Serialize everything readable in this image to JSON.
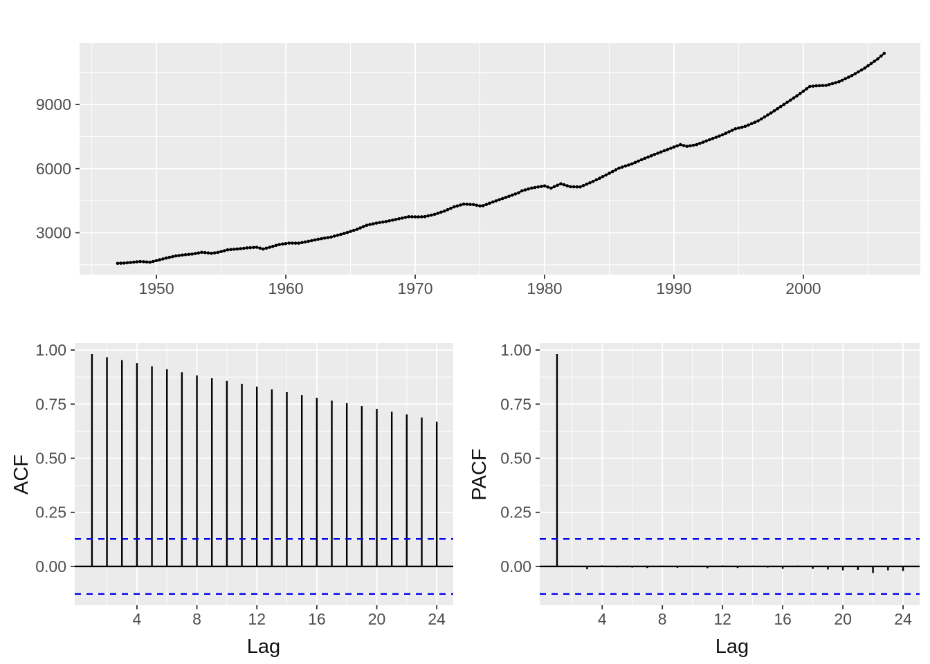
{
  "figure": {
    "background": "#FFFFFF",
    "panel_background": "#EBEBEB",
    "grid_color": "#FFFFFF",
    "tick_label_color": "#4D4D4D",
    "axis_title_color": "#111111",
    "series_color": "#000000",
    "conf_line_color": "#0000EE"
  },
  "chart_data": [
    {
      "id": "timeseries",
      "type": "line",
      "title": "",
      "xlabel": "",
      "ylabel": "",
      "x_tick_labels": [
        "1950",
        "1960",
        "1970",
        "1980",
        "1990",
        "2000"
      ],
      "x_ticks": [
        1950,
        1960,
        1970,
        1980,
        1990,
        2000
      ],
      "x_minor": [
        1945,
        1955,
        1965,
        1975,
        1985,
        1995,
        2005
      ],
      "y_tick_labels": [
        "3000",
        "6000",
        "9000"
      ],
      "y_ticks": [
        3000,
        6000,
        9000
      ],
      "y_minor": [
        1500,
        4500,
        7500,
        10500
      ],
      "xlim": [
        1944.06,
        2009.04
      ],
      "ylim": [
        1043,
        11879
      ],
      "frequency": "quarterly",
      "start": 1947.0,
      "end": 2006.25,
      "marker": "point-on-line",
      "anchors": [
        [
          1947.0,
          1570
        ],
        [
          1947.5,
          1580
        ],
        [
          1948.0,
          1610
        ],
        [
          1948.75,
          1655
        ],
        [
          1949.5,
          1622
        ],
        [
          1950.0,
          1695
        ],
        [
          1950.75,
          1815
        ],
        [
          1951.5,
          1915
        ],
        [
          1952.0,
          1958
        ],
        [
          1952.75,
          2000
        ],
        [
          1953.5,
          2085
        ],
        [
          1954.25,
          2040
        ],
        [
          1954.75,
          2080
        ],
        [
          1955.5,
          2200
        ],
        [
          1956.25,
          2240
        ],
        [
          1957.0,
          2290
        ],
        [
          1957.75,
          2320
        ],
        [
          1958.25,
          2240
        ],
        [
          1958.75,
          2320
        ],
        [
          1959.5,
          2450
        ],
        [
          1960.25,
          2515
        ],
        [
          1961.0,
          2510
        ],
        [
          1961.75,
          2600
        ],
        [
          1962.5,
          2695
        ],
        [
          1963.5,
          2800
        ],
        [
          1964.5,
          2965
        ],
        [
          1965.5,
          3160
        ],
        [
          1966.25,
          3350
        ],
        [
          1967.0,
          3450
        ],
        [
          1967.75,
          3525
        ],
        [
          1968.5,
          3620
        ],
        [
          1969.5,
          3750
        ],
        [
          1970.25,
          3740
        ],
        [
          1970.75,
          3755
        ],
        [
          1971.5,
          3860
        ],
        [
          1972.25,
          4010
        ],
        [
          1973.0,
          4210
        ],
        [
          1973.75,
          4340
        ],
        [
          1974.5,
          4315
        ],
        [
          1975.0,
          4255
        ],
        [
          1975.25,
          4265
        ],
        [
          1976.0,
          4440
        ],
        [
          1977.0,
          4650
        ],
        [
          1978.0,
          4870
        ],
        [
          1978.25,
          4960
        ],
        [
          1979.0,
          5090
        ],
        [
          1980.0,
          5190
        ],
        [
          1980.5,
          5085
        ],
        [
          1981.25,
          5290
        ],
        [
          1982.0,
          5150
        ],
        [
          1982.75,
          5140
        ],
        [
          1983.75,
          5400
        ],
        [
          1984.75,
          5700
        ],
        [
          1985.75,
          6020
        ],
        [
          1986.75,
          6220
        ],
        [
          1987.75,
          6480
        ],
        [
          1988.75,
          6720
        ],
        [
          1989.75,
          6950
        ],
        [
          1990.5,
          7120
        ],
        [
          1991.0,
          7040
        ],
        [
          1991.75,
          7120
        ],
        [
          1992.75,
          7350
        ],
        [
          1993.75,
          7580
        ],
        [
          1994.75,
          7860
        ],
        [
          1995.5,
          7970
        ],
        [
          1996.5,
          8230
        ],
        [
          1997.5,
          8600
        ],
        [
          1998.5,
          9000
        ],
        [
          1999.5,
          9400
        ],
        [
          2000.5,
          9840
        ],
        [
          2001.0,
          9870
        ],
        [
          2001.75,
          9890
        ],
        [
          2002.75,
          10060
        ],
        [
          2003.75,
          10350
        ],
        [
          2004.75,
          10700
        ],
        [
          2005.75,
          11130
        ],
        [
          2006.25,
          11390
        ]
      ]
    },
    {
      "id": "acf",
      "type": "bar",
      "title": "",
      "xlabel": "Lag",
      "ylabel": "ACF",
      "x_tick_labels": [
        "4",
        "8",
        "12",
        "16",
        "20",
        "24"
      ],
      "x_ticks": [
        4,
        8,
        12,
        16,
        20,
        24
      ],
      "x_minor": [
        2,
        6,
        10,
        14,
        18,
        22
      ],
      "y_tick_labels": [
        "0.00",
        "0.25",
        "0.50",
        "0.75",
        "1.00"
      ],
      "y_ticks": [
        0,
        0.25,
        0.5,
        0.75,
        1.0
      ],
      "y_minor": [
        -0.125,
        0.125,
        0.375,
        0.625,
        0.875
      ],
      "xlim": [
        -0.15,
        25.1
      ],
      "ylim": [
        -0.179,
        1.032
      ],
      "zero_line": 0,
      "conf_bounds": [
        0.127,
        -0.127
      ],
      "lags": [
        1,
        2,
        3,
        4,
        5,
        6,
        7,
        8,
        9,
        10,
        11,
        12,
        13,
        14,
        15,
        16,
        17,
        18,
        19,
        20,
        21,
        22,
        23,
        24
      ],
      "values": [
        0.981,
        0.967,
        0.953,
        0.939,
        0.925,
        0.911,
        0.897,
        0.883,
        0.87,
        0.857,
        0.844,
        0.831,
        0.818,
        0.805,
        0.792,
        0.779,
        0.766,
        0.754,
        0.741,
        0.728,
        0.715,
        0.702,
        0.688,
        0.669
      ]
    },
    {
      "id": "pacf",
      "type": "bar",
      "title": "",
      "xlabel": "Lag",
      "ylabel": "PACF",
      "x_tick_labels": [
        "4",
        "8",
        "12",
        "16",
        "20",
        "24"
      ],
      "x_ticks": [
        4,
        8,
        12,
        16,
        20,
        24
      ],
      "x_minor": [
        2,
        6,
        10,
        14,
        18,
        22
      ],
      "y_tick_labels": [
        "0.00",
        "0.25",
        "0.50",
        "0.75",
        "1.00"
      ],
      "y_ticks": [
        0,
        0.25,
        0.5,
        0.75,
        1.0
      ],
      "y_minor": [
        -0.125,
        0.125,
        0.375,
        0.625,
        0.875
      ],
      "xlim": [
        -0.15,
        25.1
      ],
      "ylim": [
        -0.179,
        1.032
      ],
      "zero_line": 0,
      "conf_bounds": [
        0.127,
        -0.127
      ],
      "lags": [
        1,
        2,
        3,
        4,
        5,
        6,
        7,
        8,
        9,
        10,
        11,
        12,
        13,
        14,
        15,
        16,
        17,
        18,
        19,
        20,
        21,
        22,
        23,
        24
      ],
      "values": [
        0.981,
        0.004,
        -0.013,
        0.005,
        -0.004,
        -0.005,
        -0.007,
        0.004,
        -0.006,
        0.004,
        -0.008,
        0.005,
        -0.007,
        0.004,
        -0.005,
        -0.011,
        0.004,
        -0.011,
        -0.014,
        -0.018,
        -0.016,
        -0.03,
        -0.018,
        -0.021
      ]
    }
  ]
}
